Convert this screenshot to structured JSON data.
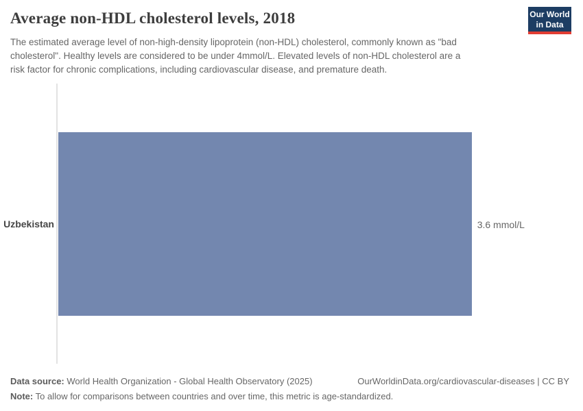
{
  "header": {
    "title": "Average non-HDL cholesterol levels, 2018",
    "subtitle_lines": [
      "The estimated average level of non-high-density lipoprotein (non-HDL) cholesterol, commonly known as \"bad",
      "cholesterol\". Healthy levels are considered to be under 4mmol/L. Elevated levels of non-HDL cholesterol are a",
      "risk factor for chronic complications, including cardiovascular disease, and premature death."
    ],
    "logo": {
      "line1": "Our World",
      "line2": "in Data",
      "bg_color": "#1d3d63",
      "accent_color": "#e13d33"
    }
  },
  "chart_data": {
    "type": "bar",
    "orientation": "horizontal",
    "title": "Average non-HDL cholesterol levels, 2018",
    "categories": [
      "Uzbekistan"
    ],
    "values": [
      3.6
    ],
    "unit": "mmol/L",
    "value_labels": [
      "3.6 mmol/L"
    ],
    "xlabel": "",
    "ylabel": "",
    "xlim": [
      0,
      4.45
    ],
    "grid": false,
    "legend": false,
    "bar_color": "#7387af",
    "axis_line_color": "#e2e2e2"
  },
  "footer": {
    "data_source_label": "Data source:",
    "data_source_value": "World Health Organization - Global Health Observatory (2025)",
    "note_label": "Note:",
    "note_value": "To allow for comparisons between countries and over time, this metric is age-standardized.",
    "link": "OurWorldinData.org/cardiovascular-diseases | CC BY"
  }
}
